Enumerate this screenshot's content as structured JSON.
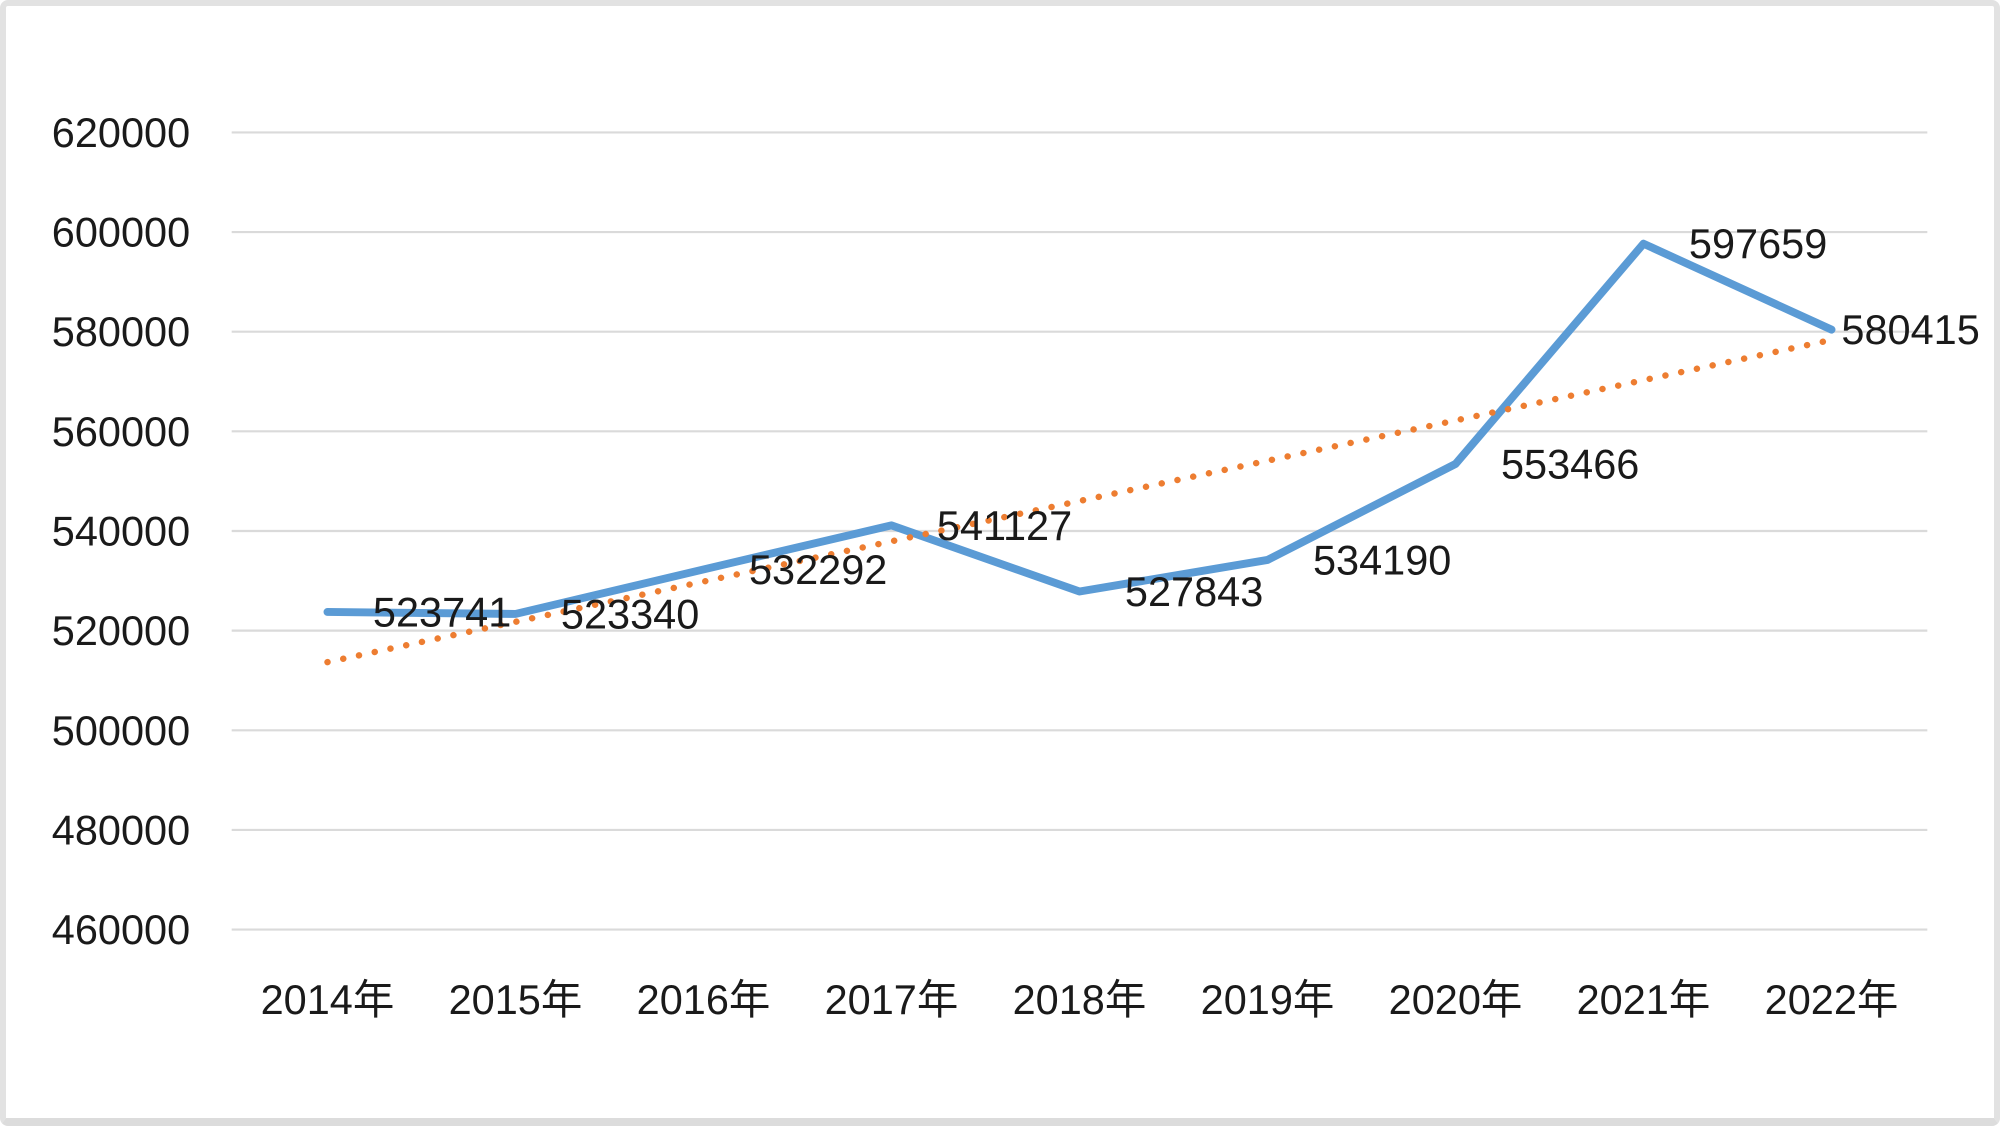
{
  "chart_data": {
    "type": "line",
    "title": "",
    "xlabel": "",
    "ylabel": "",
    "categories": [
      "2014年",
      "2015年",
      "2016年",
      "2017年",
      "2018年",
      "2019年",
      "2020年",
      "2021年",
      "2022年"
    ],
    "series": [
      {
        "name": "annual-value",
        "values": [
          523741,
          523340,
          532292,
          541127,
          527843,
          534190,
          553466,
          597659,
          580415
        ],
        "color": "#5B9BD5",
        "data_labels": [
          "523741",
          "523340",
          "532292",
          "541127",
          "527843",
          "534190",
          "553466",
          "597659",
          "580415"
        ],
        "data_label_position": "right"
      }
    ],
    "trendline": {
      "name": "linear-trendline",
      "type": "linear",
      "start_value": 513671,
      "end_value": 578346,
      "color": "#ED7D31",
      "line_style": "round-dot"
    },
    "yticks": [
      460000,
      480000,
      500000,
      520000,
      540000,
      560000,
      580000,
      600000,
      620000
    ],
    "ytick_labels": [
      "460000",
      "480000",
      "500000",
      "520000",
      "540000",
      "560000",
      "580000",
      "600000",
      "620000"
    ],
    "ylim": [
      450000,
      630000
    ],
    "grid": "horizontal",
    "grid_color": "#dadada",
    "legend": "none",
    "text_color": "#1a1a1a",
    "background_color": "#ffffff",
    "frame_border_color": "#e2e2e2"
  }
}
